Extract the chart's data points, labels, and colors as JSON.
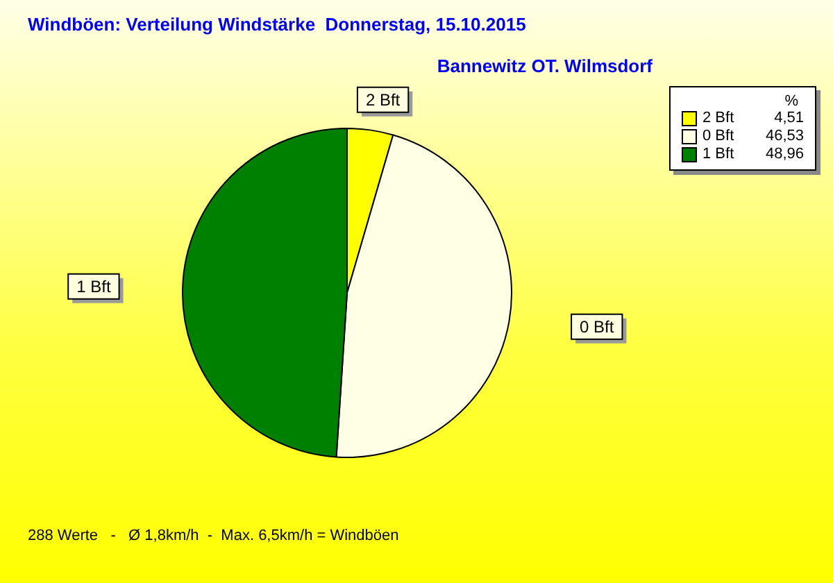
{
  "chart_data": {
    "type": "pie",
    "title": "Windböen: Verteilung Windstärke  Donnerstag, 15.10.2015",
    "subtitle": "Bannewitz OT. Wilmsdorf",
    "categories": [
      "2 Bft",
      "0 Bft",
      "1 Bft"
    ],
    "values": [
      4.51,
      46.53,
      48.96
    ],
    "value_labels": [
      "4,51",
      "46,53",
      "48,96"
    ],
    "colors": [
      "#ffff00",
      "#ffffe6",
      "#008000"
    ],
    "legend": "top right",
    "legend_title": "%",
    "annotations": [
      "288 Werte   -   Ø 1,8km/h  -  Max. 6,5km/h = Windböen"
    ]
  }
}
